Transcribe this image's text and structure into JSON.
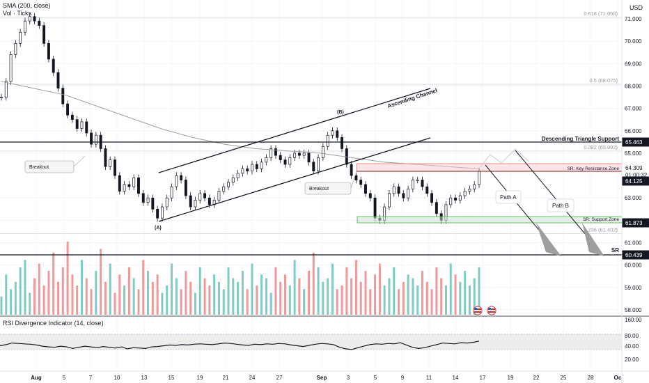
{
  "header": {
    "sma_label": "SMA (200, close)",
    "vol_label": "Vol · Ticks",
    "currency": "USD"
  },
  "rsi_panel": {
    "label": "RSI Divergence Indicator (14, close)",
    "ticks": [
      "160.00",
      "80.00",
      "40.00",
      "20.00"
    ]
  },
  "chart_data": {
    "type": "candlestick",
    "y_axis_ticks": [
      "71.000",
      "70.000",
      "69.000",
      "68.000",
      "67.000",
      "66.000",
      "65.000",
      "63.000",
      "62.000",
      "61.000",
      "60.000",
      "59.000",
      "58.000"
    ],
    "x_axis_ticks": [
      "Aug",
      "5",
      "7",
      "10",
      "13",
      "15",
      "19",
      "21",
      "24",
      "27",
      "Sep",
      "3",
      "5",
      "9",
      "11",
      "14",
      "17",
      "19",
      "22",
      "25",
      "28",
      "Oc"
    ],
    "price_badges": [
      {
        "value": "65.463",
        "style": "dark"
      },
      {
        "value": "64.309",
        "style": "light"
      },
      {
        "value": "01:00:32",
        "style": "light"
      },
      {
        "value": "64.125",
        "style": "dark"
      },
      {
        "value": "61.873",
        "style": "dark"
      },
      {
        "value": "60.439",
        "style": "dark"
      }
    ],
    "fib_levels": [
      {
        "label": "0.618 (71.058)",
        "value": 71.058
      },
      {
        "label": "0.5 (68.075)",
        "value": 68.075
      },
      {
        "label": "0.382 (65.092)",
        "value": 65.092
      },
      {
        "label": "0.236 (61.402)",
        "value": 61.402
      }
    ],
    "annotations": {
      "descending_support": "Descending Triangle Support",
      "key_resistance": "SR: Key Resistance Zone",
      "support_zone": "SR: Support Zone",
      "sr": "SR",
      "ascending_channel": "Ascending Channel",
      "breakout_1": "Breakout",
      "breakout_2": "Breakout",
      "point_a": "(A)",
      "point_b": "(B)",
      "path_a": "Path A",
      "path_b": "Path B"
    },
    "series": [
      {
        "name": "price",
        "values": [
          67.5,
          68.2,
          69.4,
          69.9,
          70.4,
          70.9,
          71.1,
          70.9,
          70.7,
          69.9,
          69.2,
          68.6,
          67.9,
          67.2,
          66.7,
          66.5,
          66.1,
          66.4,
          65.9,
          65.4,
          65.8,
          65.2,
          64.4,
          64.7,
          64.0,
          63.3,
          63.6,
          63.5,
          63.9,
          63.2,
          62.8,
          63.0,
          62.5,
          62.1,
          62.6,
          63.0,
          63.5,
          64.0,
          63.8,
          63.1,
          62.6,
          62.9,
          63.2,
          63.0,
          62.7,
          62.9,
          63.3,
          63.5,
          63.7,
          63.9,
          64.1,
          64.3,
          64.2,
          64.5,
          64.3,
          64.6,
          64.8,
          65.2,
          64.9,
          64.7,
          64.5,
          64.8,
          65.0,
          64.9,
          65.0,
          64.6,
          64.2,
          64.8,
          65.3,
          65.8,
          66.0,
          65.7,
          65.2,
          64.5,
          64.0,
          63.8,
          63.6,
          63.2,
          63.0,
          62.1,
          62.0,
          62.6,
          63.2,
          63.5,
          63.2,
          63.0,
          63.4,
          63.8,
          63.8,
          63.5,
          63.2,
          62.8,
          62.3,
          62.0,
          62.7,
          63.0,
          62.9,
          63.1,
          63.3,
          63.4,
          63.6,
          64.2
        ]
      },
      {
        "name": "sma",
        "values": [
          68.2,
          67.9,
          67.6,
          67.1,
          66.6,
          66.1,
          65.7,
          65.4,
          65.2,
          65.1,
          65.0,
          64.8,
          64.6,
          64.5,
          64.4,
          64.3
        ]
      },
      {
        "name": "volume",
        "values": [
          10,
          22,
          14,
          18,
          26,
          30,
          12,
          20,
          28,
          16,
          24,
          34,
          18,
          26,
          40,
          22,
          16,
          30,
          20,
          14,
          24,
          36,
          18,
          28,
          12,
          22,
          16,
          26,
          20,
          14,
          30,
          24,
          18,
          22,
          12,
          16,
          28,
          20,
          14,
          24,
          18,
          12,
          26,
          20,
          16,
          22,
          18,
          14,
          26,
          20,
          18,
          24,
          14,
          28,
          16,
          22,
          20,
          12,
          26,
          18,
          22,
          16,
          30,
          20,
          14,
          24,
          34,
          26,
          18,
          20,
          28,
          14,
          16,
          26,
          20,
          30,
          18,
          24,
          14,
          22,
          28,
          16,
          20,
          26,
          14,
          18,
          22,
          20,
          16,
          24,
          18,
          14,
          26,
          20,
          16,
          28,
          22,
          18,
          24,
          16,
          20,
          26
        ]
      },
      {
        "name": "rsi",
        "values": [
          50,
          53,
          57,
          56,
          55,
          54,
          52,
          49,
          47,
          46,
          49,
          47,
          43,
          46,
          49,
          47,
          45,
          48,
          46,
          44,
          47,
          42,
          45,
          44,
          43,
          47,
          48,
          50,
          52,
          51,
          53,
          52,
          54,
          55,
          54,
          53,
          55,
          57,
          56,
          54,
          52,
          51,
          54,
          53,
          55,
          54,
          56,
          55,
          52,
          50,
          48,
          51,
          54,
          56,
          55,
          53,
          46,
          42,
          40,
          45,
          49,
          53,
          55,
          54,
          56,
          55,
          58,
          52,
          46,
          43,
          45,
          49,
          53,
          57,
          56,
          55,
          58,
          57,
          59,
          62
        ]
      }
    ]
  }
}
